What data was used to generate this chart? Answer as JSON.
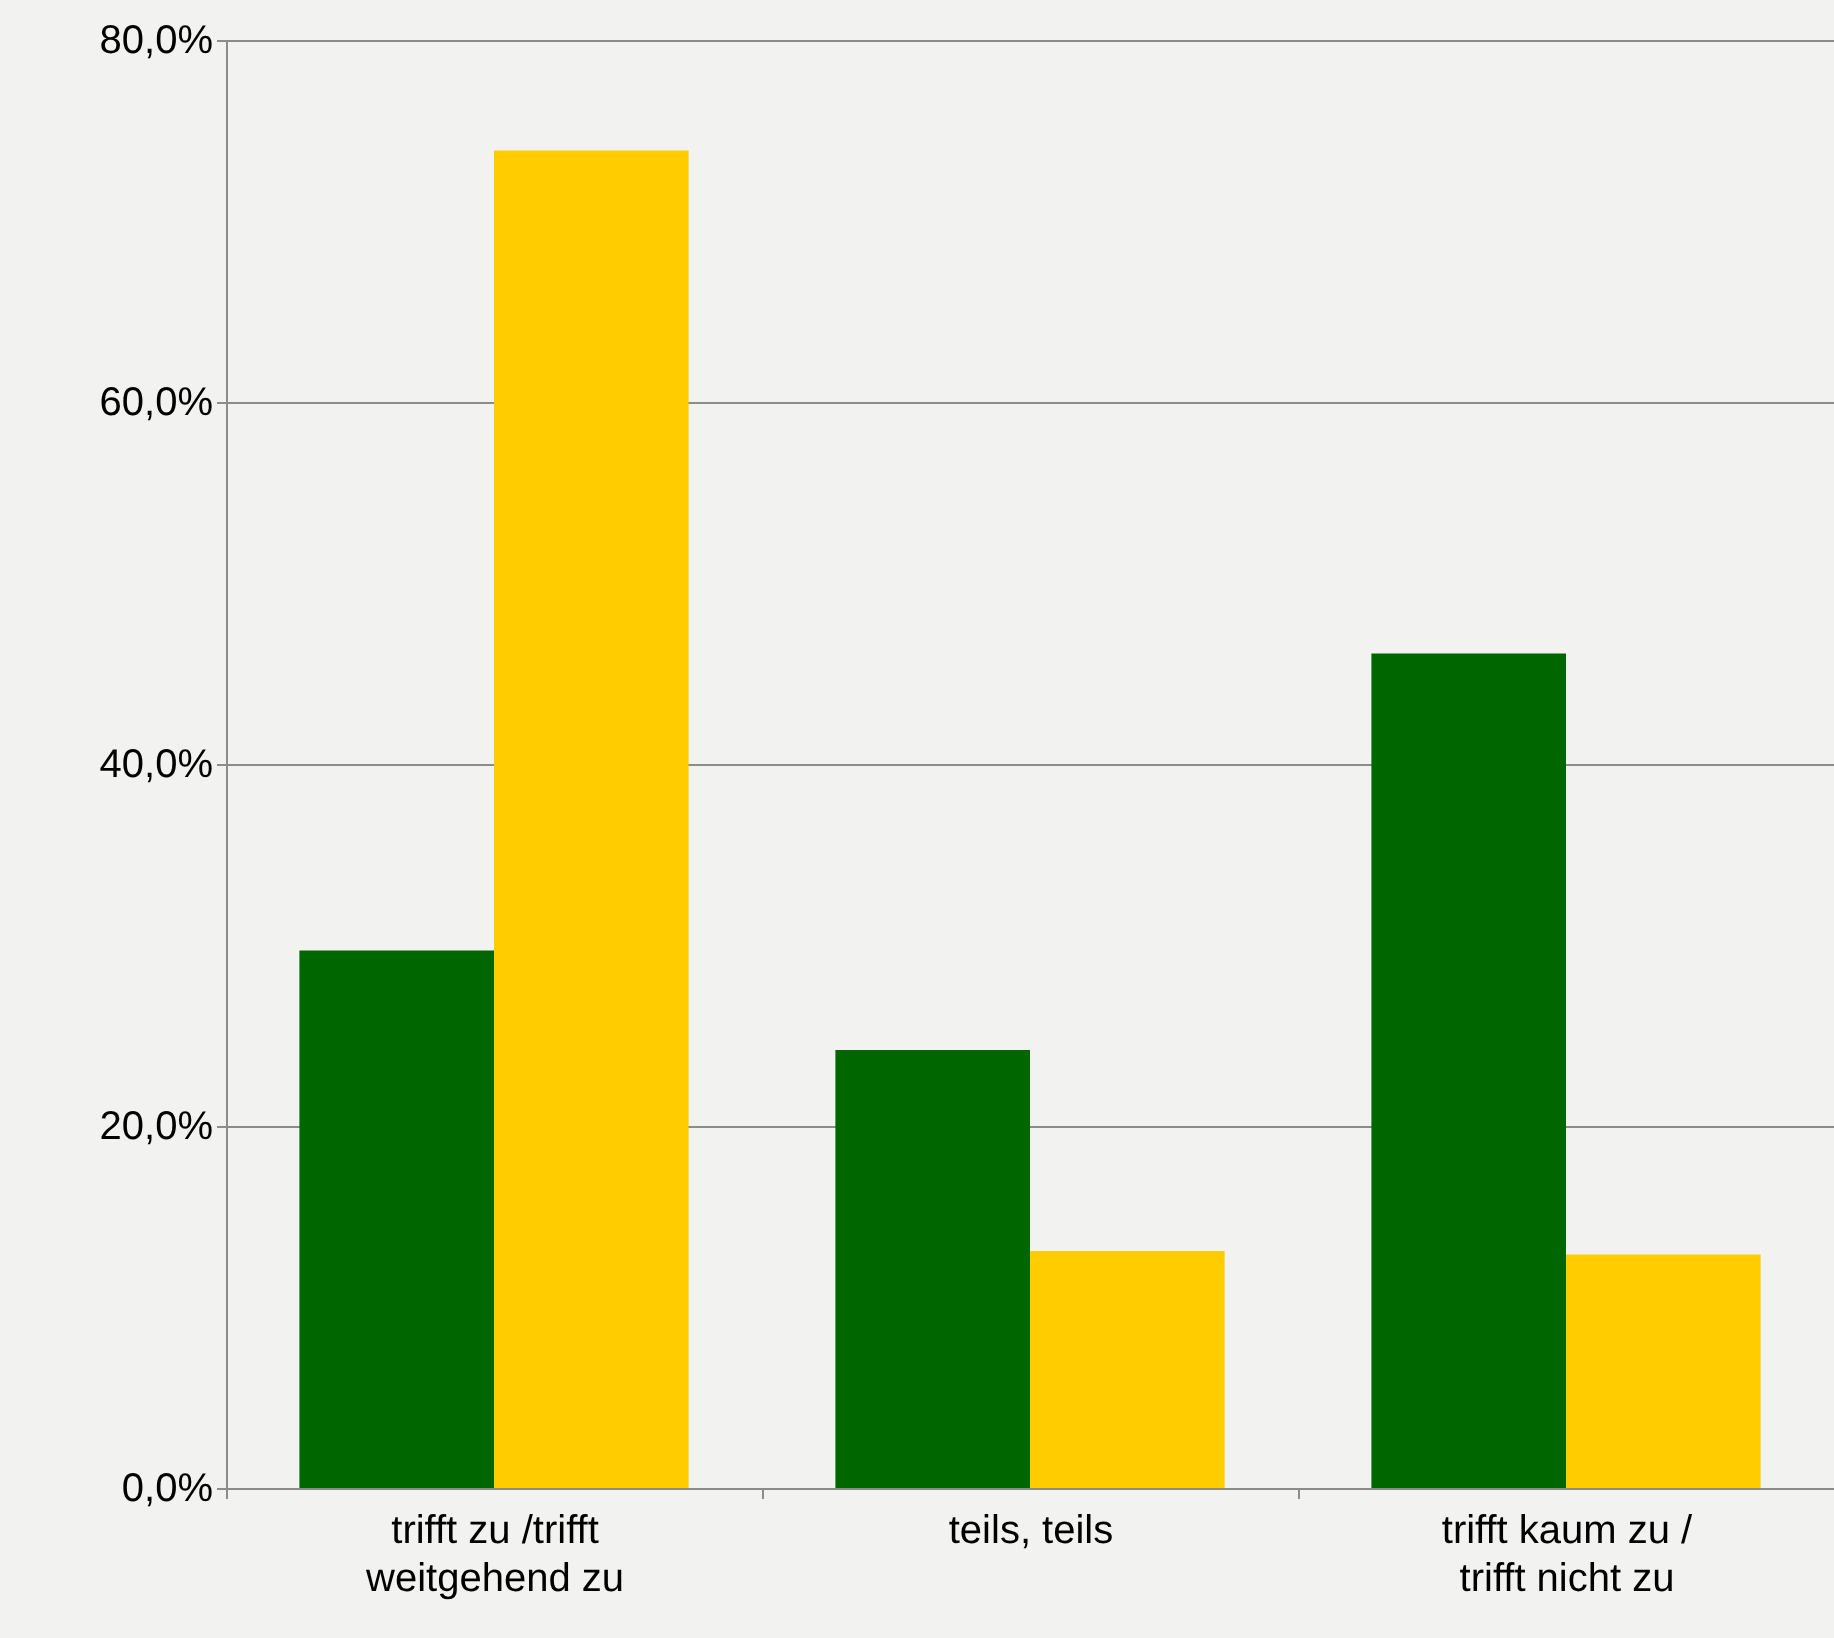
{
  "chart_data": {
    "type": "bar",
    "categories": [
      "trifft zu /trifft weitgehend zu",
      "teils, teils",
      "trifft kaum zu / trifft nicht zu"
    ],
    "series": [
      {
        "color": "#006600",
        "values": [
          29.7,
          24.2,
          46.1
        ]
      },
      {
        "color": "#ffcc00",
        "values": [
          73.9,
          13.1,
          12.9
        ]
      }
    ],
    "ylim": [
      0,
      80
    ],
    "yticks": [
      {
        "value": 0,
        "label": "0,0%"
      },
      {
        "value": 20,
        "label": "20,0%"
      },
      {
        "value": 40,
        "label": "40,0%"
      },
      {
        "value": 60,
        "label": "60,0%"
      },
      {
        "value": 80,
        "label": "80,0%"
      }
    ],
    "grid": "y"
  }
}
